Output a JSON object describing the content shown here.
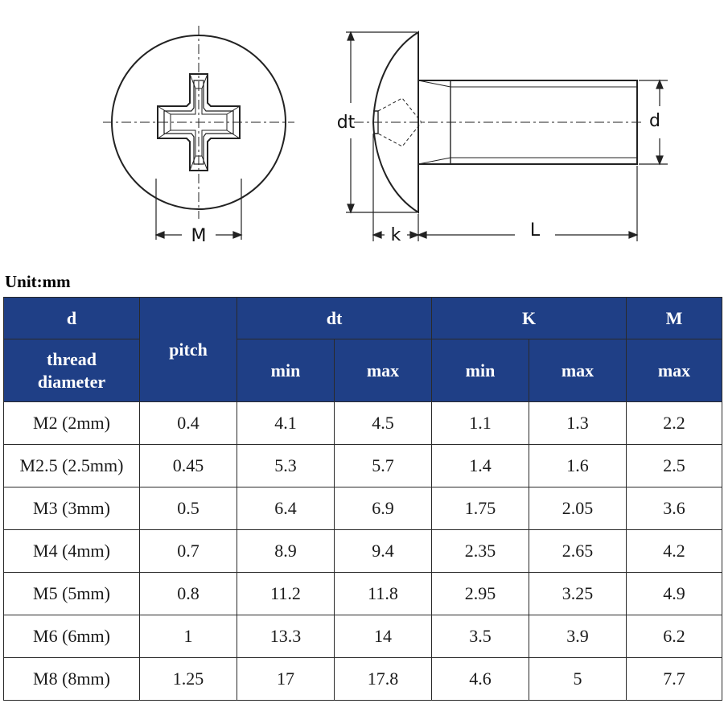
{
  "drawing": {
    "labels": {
      "m": "M",
      "dt": "dt",
      "d": "d",
      "k": "k",
      "l": "L"
    }
  },
  "unit": "Unit:mm",
  "table": {
    "header": {
      "d": "d",
      "thread_diameter_1": "thread",
      "thread_diameter_2": "diameter",
      "pitch": "pitch",
      "dt": "dt",
      "k": "K",
      "m": "M",
      "min": "min",
      "max": "max"
    },
    "rows": [
      {
        "d": "M2 (2mm)",
        "pitch": "0.4",
        "dt_min": "4.1",
        "dt_max": "4.5",
        "k_min": "1.1",
        "k_max": "1.3",
        "m_max": "2.2"
      },
      {
        "d": "M2.5 (2.5mm)",
        "pitch": "0.45",
        "dt_min": "5.3",
        "dt_max": "5.7",
        "k_min": "1.4",
        "k_max": "1.6",
        "m_max": "2.5"
      },
      {
        "d": "M3 (3mm)",
        "pitch": "0.5",
        "dt_min": "6.4",
        "dt_max": "6.9",
        "k_min": "1.75",
        "k_max": "2.05",
        "m_max": "3.6"
      },
      {
        "d": "M4 (4mm)",
        "pitch": "0.7",
        "dt_min": "8.9",
        "dt_max": "9.4",
        "k_min": "2.35",
        "k_max": "2.65",
        "m_max": "4.2"
      },
      {
        "d": "M5 (5mm)",
        "pitch": "0.8",
        "dt_min": "11.2",
        "dt_max": "11.8",
        "k_min": "2.95",
        "k_max": "3.25",
        "m_max": "4.9"
      },
      {
        "d": "M6 (6mm)",
        "pitch": "1",
        "dt_min": "13.3",
        "dt_max": "14",
        "k_min": "3.5",
        "k_max": "3.9",
        "m_max": "6.2"
      },
      {
        "d": "M8 (8mm)",
        "pitch": "1.25",
        "dt_min": "17",
        "dt_max": "17.8",
        "k_min": "4.6",
        "k_max": "5",
        "m_max": "7.7"
      }
    ]
  },
  "colors": {
    "header_bg": "#1f3f86",
    "header_text": "#ffffff",
    "line": "#222222"
  }
}
